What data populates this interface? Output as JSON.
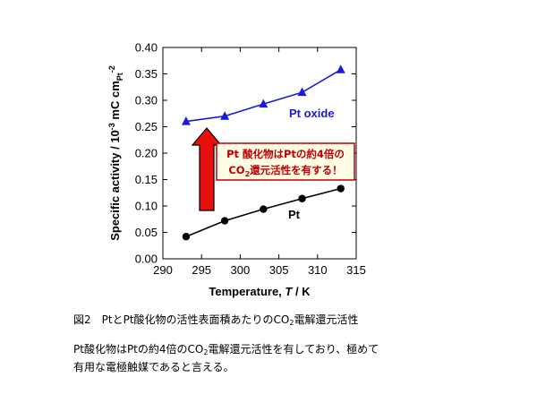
{
  "chart_data": {
    "type": "line",
    "xlabel_text": "Temperature, ",
    "xlabel_italic": "T",
    "xlabel_unit": " / K",
    "ylabel": "Specific activity / 10",
    "ylabel_exp": "-3",
    "ylabel_unit": " mC cm",
    "ylabel_sub": "Pt",
    "ylabel_sub_exp": "-2",
    "xlim": [
      290,
      315
    ],
    "ylim": [
      0.0,
      0.4
    ],
    "xticks": [
      290,
      295,
      300,
      305,
      310,
      315
    ],
    "yticks": [
      0.0,
      0.05,
      0.1,
      0.15,
      0.2,
      0.25,
      0.3,
      0.35,
      0.4
    ],
    "grid": false,
    "series": [
      {
        "name": "Pt oxide",
        "marker": "triangle",
        "color": "#1a1ad8",
        "x": [
          293,
          298,
          303,
          308,
          313
        ],
        "y": [
          0.26,
          0.27,
          0.293,
          0.315,
          0.358
        ]
      },
      {
        "name": "Pt",
        "marker": "circle",
        "color": "#000000",
        "x": [
          293,
          298,
          303,
          308,
          313
        ],
        "y": [
          0.042,
          0.072,
          0.094,
          0.114,
          0.133
        ]
      }
    ],
    "annotation": {
      "line1": "Pt 酸化物はPtの約4倍の",
      "line2_a": "CO",
      "line2_sub": "2",
      "line2_b": "還元活性を有する！",
      "text_color": "#c00000",
      "border_color": "#c00000",
      "fill": "#fffde6",
      "arrow_color": "#e8100c"
    }
  },
  "caption": {
    "a": "図2　PtとPt酸化物の活性表面積あたりのCO",
    "sub": "2",
    "b": "電解還元活性"
  },
  "paragraph": {
    "a": "Pt酸化物はPtの約4倍のCO",
    "sub": "2",
    "b": "電解還元活性を有しており、極めて",
    "line2": "有用な電極触媒であると言える。"
  }
}
